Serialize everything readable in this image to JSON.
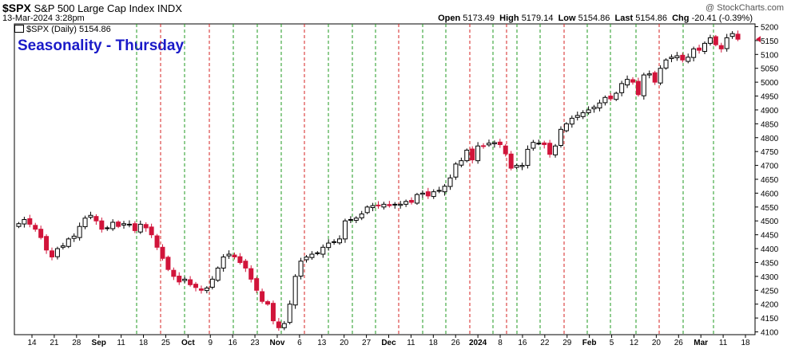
{
  "header": {
    "symbol": "$SPX",
    "name": "S&P 500 Large Cap Index",
    "exchange": "INDX",
    "datetime": "13-Mar-2024 3:28pm",
    "watermark": "@ StockCharts.com",
    "legend": "$SPX (Daily) 5154.86",
    "open_label": "Open",
    "open": "5173.49",
    "high_label": "High",
    "high": "5179.14",
    "low_label": "Low",
    "low": "5154.86",
    "last_label": "Last",
    "last": "5154.86",
    "chg_label": "Chg",
    "chg": "-20.41 (-0.39%)",
    "annotation": "Seasonality - Thursday"
  },
  "colors": {
    "up_candle": "#000000",
    "down_candle": "#d1143a",
    "green_line": "#1f9a1f",
    "red_line": "#d62020",
    "annotation": "#1a1ac8"
  },
  "chart_data": {
    "type": "candlestick",
    "title": "",
    "ylabel": "",
    "ylim": [
      4090,
      5210
    ],
    "yticks": [
      4100,
      4150,
      4200,
      4250,
      4300,
      4350,
      4400,
      4450,
      4500,
      4550,
      4600,
      4650,
      4700,
      4750,
      4800,
      4850,
      4900,
      4950,
      5000,
      5050,
      5100,
      5150,
      5200
    ],
    "xticks": [
      "14",
      "21",
      "28",
      "Sep",
      "11",
      "18",
      "25",
      "Oct",
      "9",
      "16",
      "23",
      "Nov",
      "6",
      "13",
      "20",
      "27",
      "Dec",
      "11",
      "18",
      "26",
      "2024",
      "8",
      "16",
      "22",
      "29",
      "Feb",
      "5",
      "12",
      "20",
      "26",
      "Mar",
      "11",
      "18"
    ],
    "green_vlines": [
      "Aug 17",
      "Aug 24",
      "Aug 31",
      "Sep 7",
      "Sep 14",
      "Sep 28",
      "Oct 5",
      "Oct 26",
      "Nov 2",
      "Nov 16",
      "Nov 24",
      "Nov 30",
      "Dec 7",
      "Dec 14",
      "Dec 21",
      "Dec 28",
      "Jan 4",
      "Jan 11",
      "Jan 18",
      "Jan 25",
      "Feb 8",
      "Feb 15",
      "Feb 22",
      "Feb 29",
      "Mar 7"
    ],
    "red_vlines": [
      "Sep 21",
      "Oct 12",
      "Oct 19",
      "Nov 9",
      "Jan 4"
    ],
    "close_series": [
      4490,
      4505,
      4488,
      4470,
      4440,
      4395,
      4370,
      4400,
      4410,
      4435,
      4445,
      4480,
      4510,
      4520,
      4500,
      4470,
      4475,
      4495,
      4480,
      4490,
      4488,
      4465,
      4488,
      4475,
      4450,
      4405,
      4365,
      4325,
      4300,
      4280,
      4290,
      4270,
      4260,
      4250,
      4258,
      4290,
      4330,
      4370,
      4380,
      4370,
      4350,
      4330,
      4290,
      4250,
      4210,
      4200,
      4140,
      4115,
      4130,
      4200,
      4300,
      4355,
      4370,
      4380,
      4385,
      4405,
      4420,
      4425,
      4435,
      4500,
      4505,
      4510,
      4525,
      4550,
      4555,
      4555,
      4560,
      4555,
      4560,
      4560,
      4570,
      4567,
      4595,
      4600,
      4590,
      4605,
      4610,
      4625,
      4655,
      4705,
      4717,
      4755,
      4720,
      4770,
      4769,
      4780,
      4782,
      4775,
      4742,
      4690,
      4700,
      4700,
      4758,
      4783,
      4780,
      4775,
      4740,
      4770,
      4830,
      4850,
      4870,
      4880,
      4890,
      4900,
      4910,
      4925,
      4945,
      4940,
      4960,
      4995,
      5010,
      5000,
      4955,
      5026,
      5030,
      5000,
      5050,
      5080,
      5090,
      5095,
      5080,
      5090,
      5120,
      5115,
      5140,
      5160,
      5135,
      5120,
      5160,
      5175,
      5154.86
    ]
  }
}
